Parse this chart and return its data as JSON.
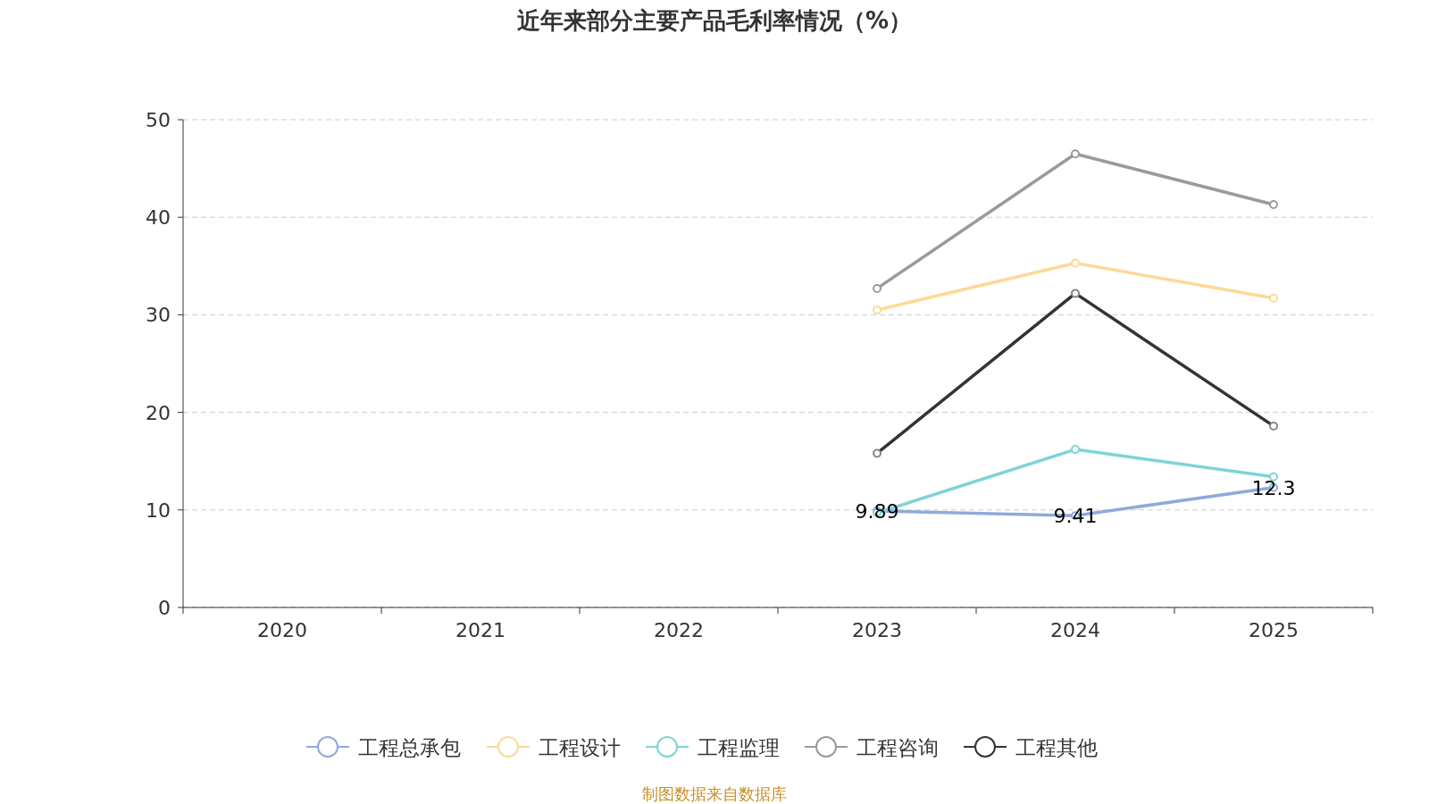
{
  "chart_data": {
    "type": "line",
    "title": "近年来部分主要产品毛利率情况（%）",
    "categories": [
      "2020",
      "2021",
      "2022",
      "2023",
      "2024",
      "2025"
    ],
    "series": [
      {
        "name": "工程总承包",
        "color": "#8eaadb",
        "values": [
          null,
          null,
          null,
          9.89,
          9.41,
          12.3
        ],
        "value_labels": [
          null,
          null,
          null,
          "9.89",
          "9.41",
          "12.3"
        ]
      },
      {
        "name": "工程设计",
        "color": "#fdd995",
        "values": [
          null,
          null,
          null,
          30.5,
          35.3,
          31.7
        ]
      },
      {
        "name": "工程监理",
        "color": "#7fd3d4",
        "values": [
          null,
          null,
          null,
          9.7,
          16.2,
          13.4
        ]
      },
      {
        "name": "工程咨询",
        "color": "#9a9a9a",
        "values": [
          null,
          null,
          null,
          32.7,
          46.5,
          41.3
        ]
      },
      {
        "name": "工程其他",
        "color": "#333333",
        "values": [
          null,
          null,
          null,
          15.8,
          32.2,
          18.6
        ]
      }
    ],
    "ylim": [
      0,
      50
    ],
    "yticks": [
      0,
      10,
      20,
      30,
      40,
      50
    ],
    "grid": "y",
    "legend": "bottom",
    "marker": "circle",
    "line_style": "solid",
    "annotations": [
      "制图数据来自数据库"
    ]
  }
}
